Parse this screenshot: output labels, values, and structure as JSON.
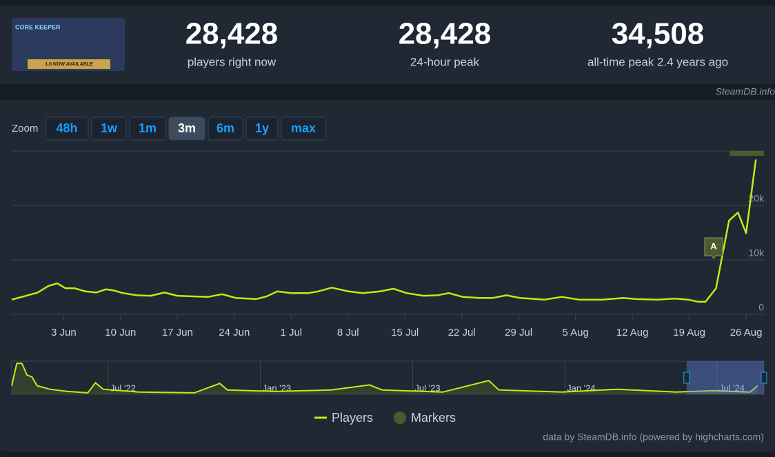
{
  "thumbnail": {
    "title": "CORE KEEPER",
    "banner": "1.0 NOW AVAILABLE"
  },
  "stats": [
    {
      "value": "28,428",
      "label": "players right now"
    },
    {
      "value": "28,428",
      "label": "24-hour peak"
    },
    {
      "value": "34,508",
      "label": "all-time peak 2.4 years ago"
    }
  ],
  "credit": "SteamDB.info",
  "zoom": {
    "label": "Zoom",
    "buttons": [
      "48h",
      "1w",
      "1m",
      "3m",
      "6m",
      "1y",
      "max"
    ],
    "active": "3m"
  },
  "chart_data": {
    "type": "line",
    "xlim": [
      -6.4,
      86.2
    ],
    "ylim": [
      0,
      30000
    ],
    "yticks": [
      0,
      {
        "value": 10000,
        "label": "10k"
      },
      {
        "value": 20000,
        "label": "20k"
      }
    ],
    "xticks": [
      {
        "value": 0,
        "label": "3 Jun"
      },
      {
        "value": 7,
        "label": "10 Jun"
      },
      {
        "value": 14,
        "label": "17 Jun"
      },
      {
        "value": 21,
        "label": "24 Jun"
      },
      {
        "value": 28,
        "label": "1 Jul"
      },
      {
        "value": 35,
        "label": "8 Jul"
      },
      {
        "value": 42,
        "label": "15 Jul"
      },
      {
        "value": 49,
        "label": "22 Jul"
      },
      {
        "value": 56,
        "label": "29 Jul"
      },
      {
        "value": 63,
        "label": "5 Aug"
      },
      {
        "value": 70,
        "label": "12 Aug"
      },
      {
        "value": 77,
        "label": "19 Aug"
      },
      {
        "value": 84,
        "label": "26 Aug"
      }
    ],
    "grid": true,
    "series": [
      {
        "name": "Players",
        "color": "#beee11",
        "x": [
          -6.4,
          -4.9,
          -3.2,
          -1.9,
          -0.8,
          0.2,
          1.3,
          2.7,
          4.0,
          5.2,
          6.1,
          7.3,
          9.0,
          10.7,
          12.4,
          14.0,
          15.7,
          17.8,
          19.5,
          21.2,
          23.7,
          25.0,
          26.3,
          28.0,
          30.1,
          31.3,
          33.0,
          35.1,
          36.8,
          38.9,
          40.6,
          42.2,
          44.3,
          46.0,
          47.4,
          49.1,
          51.2,
          52.8,
          54.5,
          56.2,
          59.2,
          61.3,
          63.4,
          66.3,
          68.9,
          70.5,
          73.1,
          75.2,
          76.9,
          78.1,
          79.0,
          80.3,
          81.9,
          83.0,
          84.0,
          85.2
        ],
        "values": [
          2700,
          3300,
          4000,
          5200,
          5700,
          4800,
          4800,
          4200,
          4000,
          4600,
          4400,
          3900,
          3500,
          3400,
          4000,
          3400,
          3300,
          3200,
          3700,
          3000,
          2800,
          3300,
          4200,
          3900,
          3900,
          4200,
          4900,
          4200,
          3900,
          4200,
          4700,
          3900,
          3400,
          3500,
          3900,
          3200,
          3000,
          3000,
          3500,
          3000,
          2700,
          3200,
          2700,
          2700,
          3000,
          2800,
          2700,
          2900,
          2700,
          2300,
          2300,
          4800,
          17200,
          18700,
          14900,
          28428
        ]
      }
    ],
    "markers": {
      "name": "Markers",
      "color": "#4c5b2f",
      "points": [
        {
          "x": 80.0,
          "label": "A"
        }
      ]
    },
    "navigator": {
      "xlim": [
        -3.8,
        25.85
      ],
      "ylim": [
        0,
        36000
      ],
      "xticks": [
        {
          "value": 0,
          "label": "Jul '22"
        },
        {
          "value": 6,
          "label": "Jan '23"
        },
        {
          "value": 12,
          "label": "Jul '23"
        },
        {
          "value": 18,
          "label": "Jan '24"
        },
        {
          "value": 24,
          "label": "Jul '24"
        }
      ],
      "selection": [
        22.8,
        25.85
      ],
      "x": [
        -3.8,
        -3.6,
        -3.4,
        -3.2,
        -3.0,
        -2.8,
        -2.3,
        -1.6,
        -0.8,
        -0.5,
        -0.2,
        1.2,
        3.4,
        4.4,
        4.7,
        6.6,
        8.8,
        10.3,
        10.8,
        13.2,
        15.0,
        15.4,
        17.9,
        20.1,
        22.4,
        23.8,
        25.3,
        25.6
      ],
      "values": [
        9400,
        33700,
        33700,
        21000,
        18800,
        9400,
        5500,
        3100,
        1600,
        12500,
        5500,
        2400,
        1600,
        11800,
        4700,
        3100,
        4700,
        10200,
        4700,
        2400,
        14900,
        4700,
        2400,
        5500,
        2400,
        3900,
        2400,
        9400
      ]
    }
  },
  "footer": "data by SteamDB.info (powered by highcharts.com)"
}
